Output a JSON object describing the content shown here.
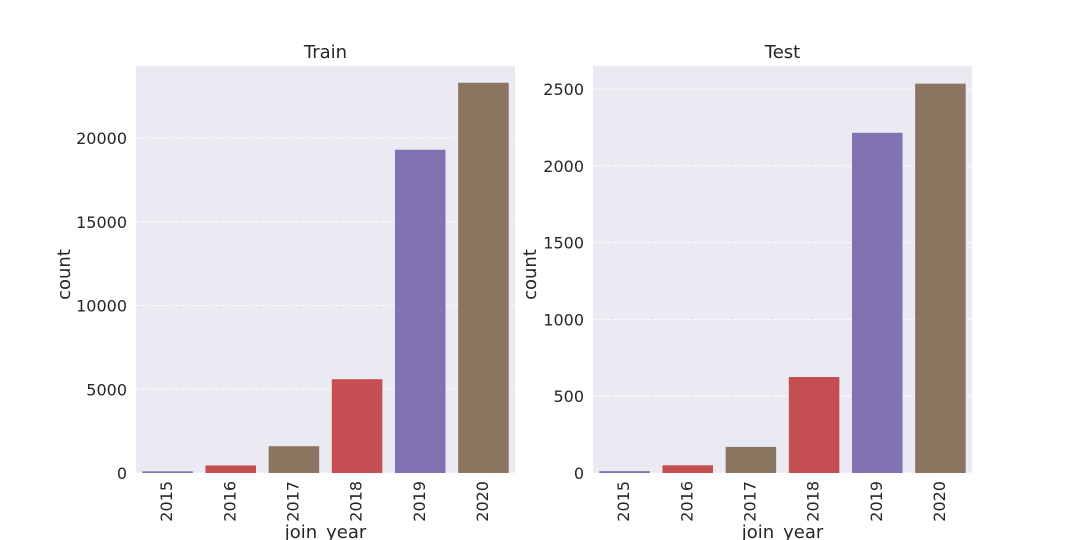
{
  "colors": {
    "background": "#eaeaf2",
    "grid": "#ffffff",
    "text": "#262626"
  },
  "chart_data": [
    {
      "type": "bar",
      "title": "Train",
      "xlabel": "join_year",
      "ylabel": "count",
      "categories": [
        "2015",
        "2016",
        "2017",
        "2018",
        "2019",
        "2020"
      ],
      "values": [
        100,
        450,
        1600,
        5600,
        19300,
        23300
      ],
      "bar_colors": [
        "#8172b2",
        "#c44e52",
        "#8c7560",
        "#c44e52",
        "#8172b2",
        "#8c7560"
      ],
      "ylim": [
        0,
        24300
      ],
      "yticks": [
        0,
        5000,
        10000,
        15000,
        20000
      ],
      "grid": true
    },
    {
      "type": "bar",
      "title": "Test",
      "xlabel": "join_year",
      "ylabel": "count",
      "categories": [
        "2015",
        "2016",
        "2017",
        "2018",
        "2019",
        "2020"
      ],
      "values": [
        12,
        50,
        170,
        625,
        2215,
        2535
      ],
      "bar_colors": [
        "#8172b2",
        "#c44e52",
        "#8c7560",
        "#c44e52",
        "#8172b2",
        "#8c7560"
      ],
      "ylim": [
        0,
        2650
      ],
      "yticks": [
        0,
        500,
        1000,
        1500,
        2000,
        2500
      ],
      "grid": true
    }
  ]
}
